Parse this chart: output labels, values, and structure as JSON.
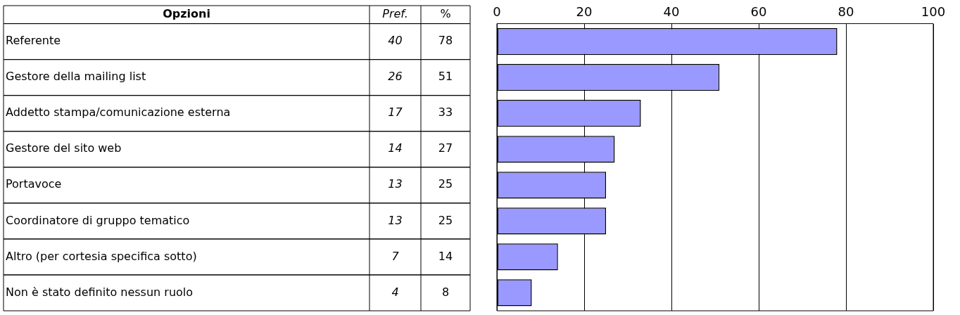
{
  "chart_data": {
    "type": "bar",
    "orientation": "horizontal",
    "ylabel": "Opzioni",
    "categories": [
      "Referente",
      "Gestore della mailing list",
      "Addetto stampa/comunicazione esterna",
      "Gestore del sito web",
      "Portavoce",
      "Coordinatore di gruppo tematico",
      "Altro (per cortesia specifica sotto)",
      "Non è stato definito nessun ruolo"
    ],
    "values": [
      78,
      51,
      33,
      27,
      25,
      25,
      14,
      8
    ],
    "color": "#9999ff",
    "data_labels": true,
    "x2lim": [
      0,
      100
    ],
    "x2ticks": [
      0,
      20,
      40,
      60,
      80,
      100
    ],
    "grid": "x",
    "annotations": [
      "Pref.",
      "%",
      "40",
      "26",
      "17",
      "14",
      "13",
      "13",
      "7",
      "4"
    ]
  }
}
